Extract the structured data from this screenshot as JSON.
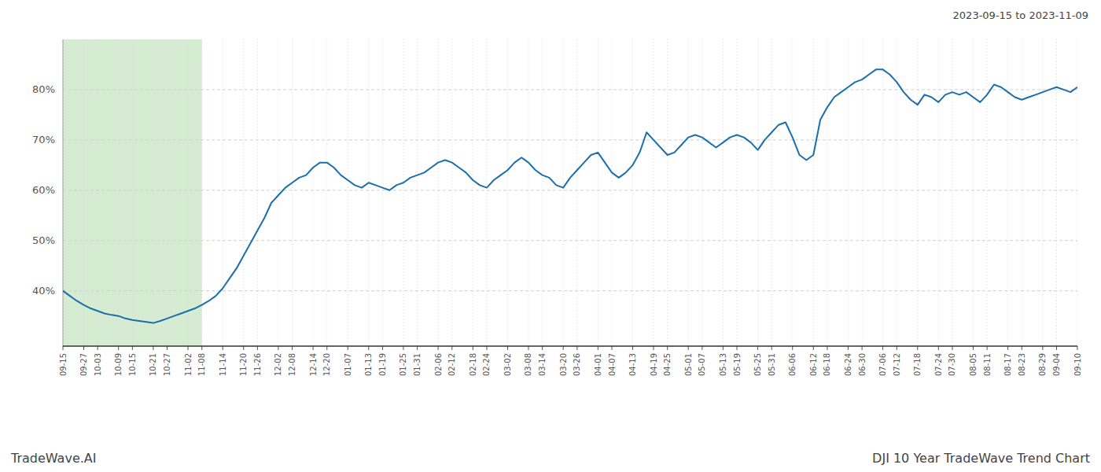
{
  "chart_data": {
    "type": "line",
    "title": "DJI 10 Year TradeWave Trend Chart",
    "subtitle": "2023-09-15 to 2023-11-09",
    "annotations": [
      "TradeWave.AI"
    ],
    "color": "#1c6fad",
    "grid": true,
    "shaded_range": {
      "start": "09-15",
      "end": "11-08",
      "color": "#d6ecd2"
    },
    "ylim": [
      29,
      90
    ],
    "yticks": [
      {
        "value": 40,
        "label": "40%"
      },
      {
        "value": 50,
        "label": "50%"
      },
      {
        "value": 60,
        "label": "60%"
      },
      {
        "value": 70,
        "label": "70%"
      },
      {
        "value": 80,
        "label": "80%"
      }
    ],
    "categories": [
      "09-15",
      null,
      null,
      "09-27",
      null,
      "10-03",
      null,
      null,
      "10-09",
      null,
      "10-15",
      null,
      null,
      "10-21",
      null,
      "10-27",
      null,
      null,
      "11-02",
      null,
      "11-08",
      null,
      null,
      "11-14",
      null,
      null,
      "11-20",
      null,
      "11-26",
      null,
      null,
      "12-02",
      null,
      "12-08",
      null,
      null,
      "12-14",
      null,
      "12-20",
      null,
      null,
      "01-07",
      null,
      null,
      "01-13",
      null,
      "01-19",
      null,
      null,
      "01-25",
      null,
      "01-31",
      null,
      null,
      "02-06",
      null,
      "02-12",
      null,
      null,
      "02-18",
      null,
      "02-24",
      null,
      null,
      "03-02",
      null,
      null,
      "03-08",
      null,
      "03-14",
      null,
      null,
      "03-20",
      null,
      "03-26",
      null,
      null,
      "04-01",
      null,
      "04-07",
      null,
      null,
      "04-13",
      null,
      null,
      "04-19",
      null,
      "04-25",
      null,
      null,
      "05-01",
      null,
      "05-07",
      null,
      null,
      "05-13",
      null,
      "05-19",
      null,
      null,
      "05-25",
      null,
      "05-31",
      null,
      null,
      "06-06",
      null,
      null,
      "06-12",
      null,
      "06-18",
      null,
      null,
      "06-24",
      null,
      "06-30",
      null,
      null,
      "07-06",
      null,
      "07-12",
      null,
      null,
      "07-18",
      null,
      null,
      "07-24",
      null,
      "07-30",
      null,
      null,
      "08-05",
      null,
      "08-11",
      null,
      null,
      "08-17",
      null,
      "08-23",
      null,
      null,
      "08-29",
      null,
      "09-04",
      null,
      null,
      "09-10"
    ],
    "values": [
      40.0,
      39.0,
      38.0,
      37.2,
      36.5,
      36.0,
      35.5,
      35.2,
      35.0,
      34.5,
      34.2,
      34.0,
      33.8,
      33.6,
      34.0,
      34.5,
      35.0,
      35.5,
      36.0,
      36.5,
      37.2,
      38.0,
      39.0,
      40.5,
      42.5,
      44.5,
      47.0,
      49.5,
      52.0,
      54.5,
      57.5,
      59.0,
      60.5,
      61.5,
      62.5,
      63.0,
      64.5,
      65.5,
      65.5,
      64.5,
      63.0,
      62.0,
      61.0,
      60.5,
      61.5,
      61.0,
      60.5,
      60.0,
      61.0,
      61.5,
      62.5,
      63.0,
      63.5,
      64.5,
      65.5,
      66.0,
      65.5,
      64.5,
      63.5,
      62.0,
      61.0,
      60.5,
      62.0,
      63.0,
      64.0,
      65.5,
      66.5,
      65.5,
      64.0,
      63.0,
      62.5,
      61.0,
      60.5,
      62.5,
      64.0,
      65.5,
      67.0,
      67.5,
      65.5,
      63.5,
      62.5,
      63.5,
      65.0,
      67.5,
      71.5,
      70.0,
      68.5,
      67.0,
      67.5,
      69.0,
      70.5,
      71.0,
      70.5,
      69.5,
      68.5,
      69.5,
      70.5,
      71.0,
      70.5,
      69.5,
      68.0,
      70.0,
      71.5,
      73.0,
      73.5,
      70.5,
      67.0,
      66.0,
      67.0,
      74.0,
      76.5,
      78.5,
      79.5,
      80.5,
      81.5,
      82.0,
      83.0,
      84.0,
      84.0,
      83.0,
      81.5,
      79.5,
      78.0,
      77.0,
      79.0,
      78.5,
      77.5,
      79.0,
      79.5,
      79.0,
      79.5,
      78.5,
      77.5,
      79.0,
      81.0,
      80.5,
      79.5,
      78.5,
      78.0,
      78.5,
      79.0,
      79.5,
      80.0,
      80.5,
      80.0,
      79.5,
      80.5
    ]
  }
}
